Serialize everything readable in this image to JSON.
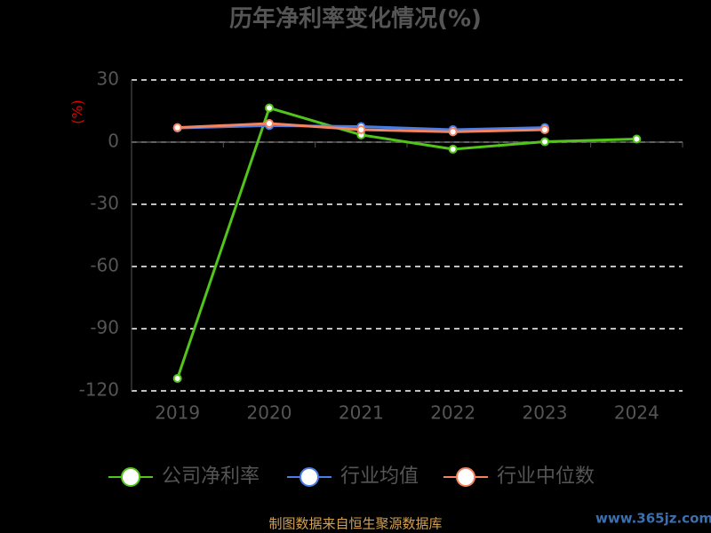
{
  "chart_data": {
    "type": "line",
    "title": "历年净利率变化情况(%)",
    "y_label": "(%)",
    "categories": [
      "2019",
      "2020",
      "2021",
      "2022",
      "2023",
      "2024"
    ],
    "series": [
      {
        "name": "公司净利率",
        "color": "#52c41a",
        "values": [
          -114,
          16.5,
          3.5,
          -3.4,
          0.2,
          1.5
        ]
      },
      {
        "name": "行业均值",
        "color": "#4a7ee6",
        "values": [
          6.8,
          8,
          7.5,
          6,
          7,
          null
        ]
      },
      {
        "name": "行业中位数",
        "color": "#f4845f",
        "values": [
          7,
          9,
          6,
          5,
          6,
          null
        ]
      }
    ],
    "ylim": [
      -120,
      30
    ],
    "yticks": [
      -120,
      -90,
      -60,
      -30,
      0,
      30
    ],
    "grid": true,
    "source": "制图数据来自恒生聚源数据库",
    "watermark": "www.365jz.com"
  }
}
